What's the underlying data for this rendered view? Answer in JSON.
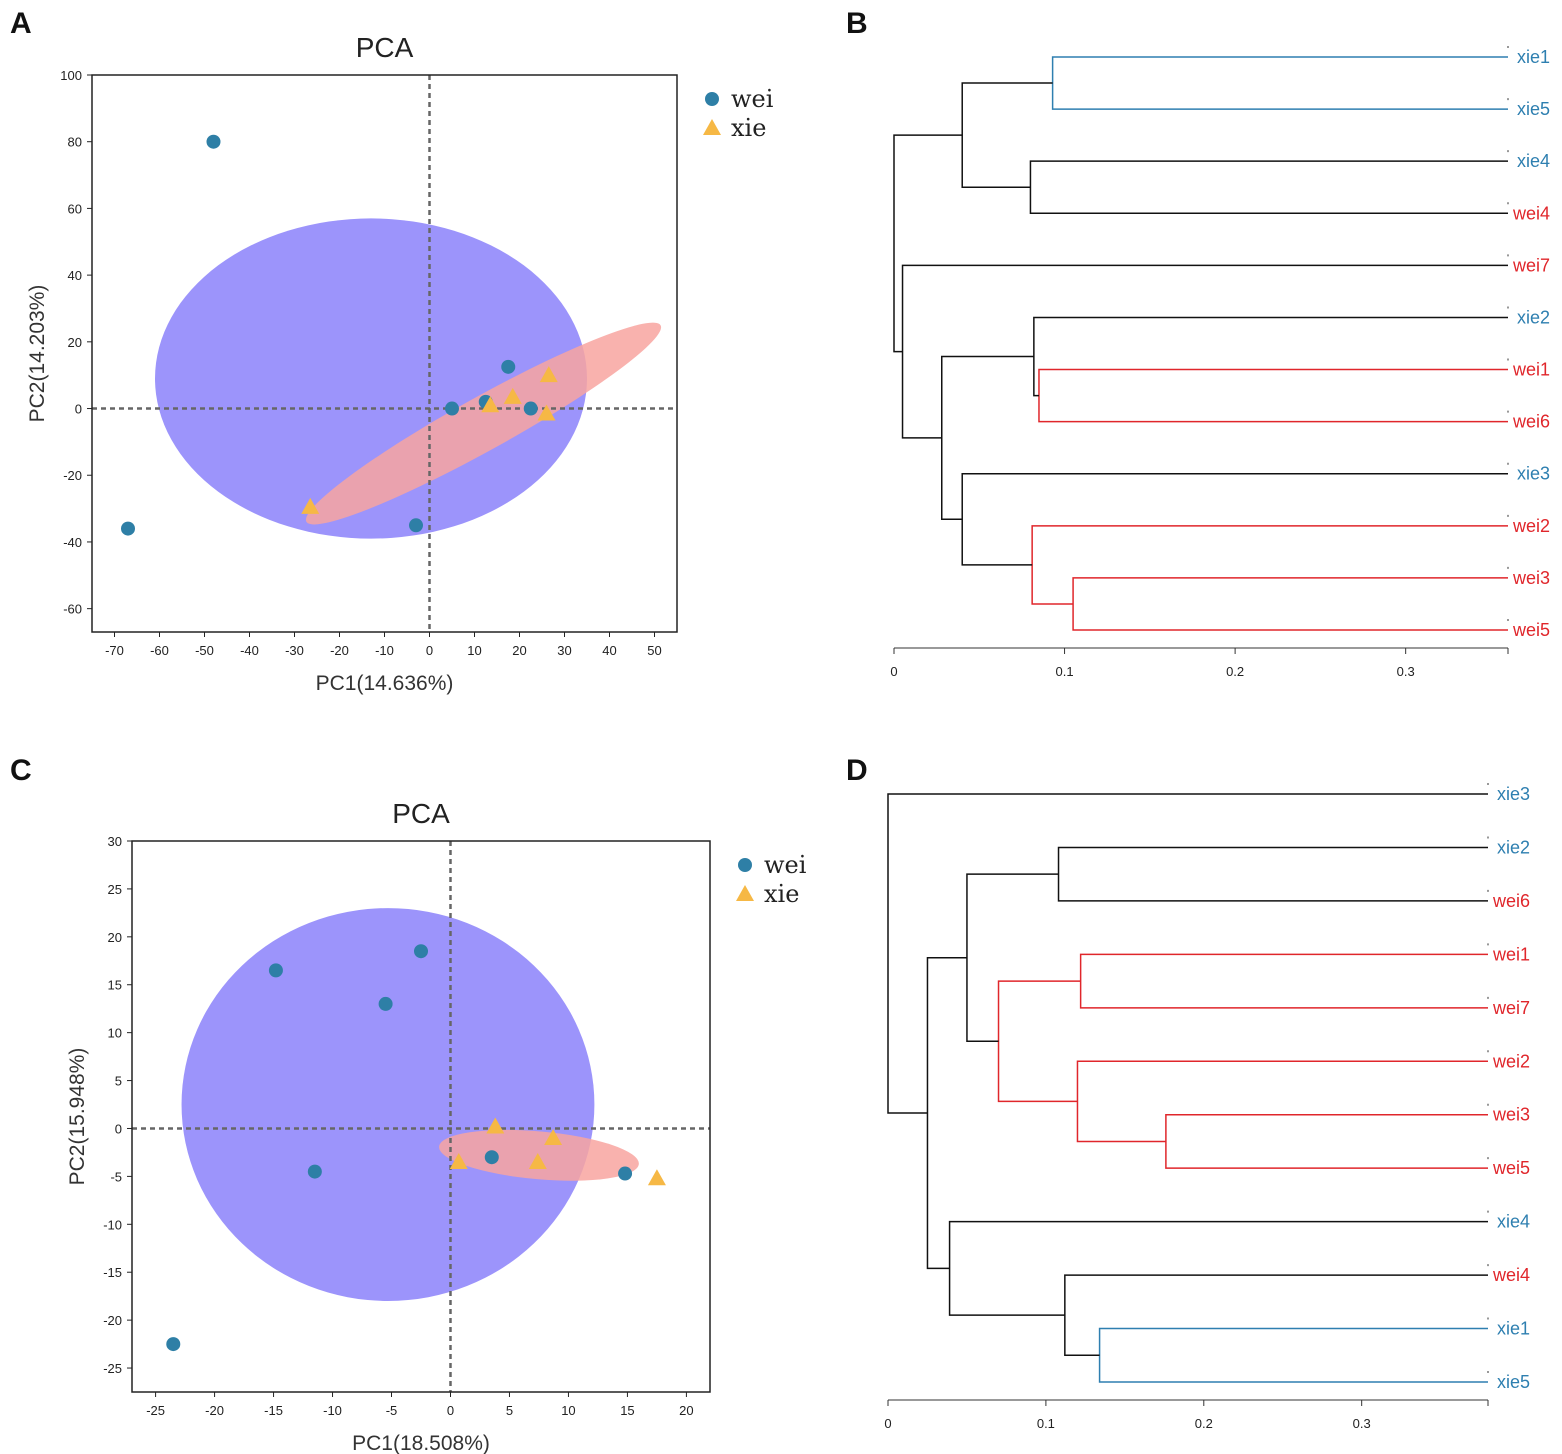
{
  "colors": {
    "wei_point": "#2e7fa6",
    "xie_point": "#f6b845",
    "wei_ellipse": "#9c94fb",
    "xie_ellipse": "#f8a5a0",
    "blue_branch": "#2e7fb0",
    "red_branch": "#e0262b",
    "black_branch": "#111111"
  },
  "chart_data": [
    {
      "panel": "A",
      "type": "scatter",
      "title": "PCA",
      "xlabel": "PC1(14.636%)",
      "ylabel": "PC2(14.203%)",
      "xlim": [
        -75,
        55
      ],
      "ylim": [
        -67,
        100
      ],
      "xticks": [
        -70,
        -60,
        -50,
        -40,
        -30,
        -20,
        -10,
        0,
        10,
        20,
        30,
        40,
        50
      ],
      "yticks": [
        100,
        80,
        60,
        40,
        20,
        0,
        -20,
        -40,
        -60
      ],
      "legend": [
        "wei",
        "xie"
      ],
      "series": [
        {
          "name": "wei",
          "marker": "circle",
          "points": [
            [
              -48,
              80
            ],
            [
              -67,
              -36
            ],
            [
              -3,
              -35
            ],
            [
              5,
              0
            ],
            [
              12.5,
              2
            ],
            [
              17.5,
              12.5
            ],
            [
              22.5,
              0
            ]
          ]
        },
        {
          "name": "xie",
          "marker": "triangle",
          "points": [
            [
              -26.5,
              -29.5
            ],
            [
              13.5,
              1
            ],
            [
              18.5,
              3.5
            ],
            [
              26,
              -1.5
            ],
            [
              26.5,
              10
            ]
          ]
        }
      ],
      "ellipses": [
        {
          "group": "wei",
          "cx": -13,
          "cy": 9,
          "rx": 48,
          "ry": 48
        },
        {
          "group": "xie",
          "cx": 12,
          "cy": -4.5,
          "rx": 45,
          "ry": 8,
          "angle_deg": 29
        }
      ]
    },
    {
      "panel": "B",
      "type": "dendrogram",
      "xticks": [
        0,
        0.1,
        0.2,
        0.3
      ],
      "xlim": [
        0,
        0.36
      ],
      "leaves": [
        {
          "label": "xie1",
          "group": "xie"
        },
        {
          "label": "xie5",
          "group": "xie"
        },
        {
          "label": "xie4",
          "group": "xie"
        },
        {
          "label": "wei4",
          "group": "wei"
        },
        {
          "label": "wei7",
          "group": "wei"
        },
        {
          "label": "xie2",
          "group": "xie"
        },
        {
          "label": "wei1",
          "group": "wei"
        },
        {
          "label": "wei6",
          "group": "wei"
        },
        {
          "label": "xie3",
          "group": "xie"
        },
        {
          "label": "wei2",
          "group": "wei"
        },
        {
          "label": "wei3",
          "group": "wei"
        },
        {
          "label": "wei5",
          "group": "wei"
        }
      ],
      "merges": [
        {
          "a": "L0",
          "b": "L1",
          "height": 0.093,
          "color": "blue"
        },
        {
          "a": "L2",
          "b": "L3",
          "height": 0.08,
          "color": "black"
        },
        {
          "a": "M0",
          "b": "M1",
          "height": 0.04,
          "color": "black"
        },
        {
          "a": "L6",
          "b": "L7",
          "height": 0.085,
          "color": "red"
        },
        {
          "a": "L5",
          "b": "M3",
          "height": 0.082,
          "color": "black"
        },
        {
          "a": "L10",
          "b": "L11",
          "height": 0.105,
          "color": "red"
        },
        {
          "a": "L9",
          "b": "M5",
          "height": 0.081,
          "color": "red"
        },
        {
          "a": "L8",
          "b": "M6",
          "height": 0.04,
          "color": "black"
        },
        {
          "a": "M4",
          "b": "M7",
          "height": 0.028,
          "color": "black"
        },
        {
          "a": "L4",
          "b": "M8",
          "height": 0.005,
          "color": "black"
        },
        {
          "a": "M2",
          "b": "M9",
          "height": 0,
          "color": "black"
        }
      ]
    },
    {
      "panel": "C",
      "type": "scatter",
      "title": "PCA",
      "xlabel": "PC1(18.508%)",
      "ylabel": "PC2(15.948%)",
      "xlim": [
        -27,
        22
      ],
      "ylim": [
        -27.5,
        30
      ],
      "xticks": [
        -25,
        -20,
        -15,
        -10,
        -5,
        0,
        5,
        10,
        15,
        20
      ],
      "yticks": [
        30,
        25,
        20,
        15,
        10,
        5,
        0,
        -5,
        -10,
        -15,
        -20,
        -25
      ],
      "legend": [
        "wei",
        "xie"
      ],
      "series": [
        {
          "name": "wei",
          "marker": "circle",
          "points": [
            [
              -14.8,
              16.5
            ],
            [
              -2.5,
              18.5
            ],
            [
              -5.5,
              13
            ],
            [
              -11.5,
              -4.5
            ],
            [
              3.5,
              -3
            ],
            [
              14.8,
              -4.7
            ],
            [
              -23.5,
              -22.5
            ]
          ]
        },
        {
          "name": "xie",
          "marker": "triangle",
          "points": [
            [
              0.7,
              -3.5
            ],
            [
              3.8,
              0.2
            ],
            [
              8.7,
              -1
            ],
            [
              7.4,
              -3.5
            ],
            [
              17.5,
              -5.2
            ]
          ]
        }
      ],
      "ellipses": [
        {
          "group": "wei",
          "cx": -5.3,
          "cy": 2.5,
          "rx": 17.5,
          "ry": 20.5,
          "angle_deg": 0
        },
        {
          "group": "xie",
          "cx": 7.5,
          "cy": -2.8,
          "rx": 8.5,
          "ry": 2.5,
          "angle_deg": -5
        }
      ]
    },
    {
      "panel": "D",
      "type": "dendrogram",
      "xticks": [
        0,
        0.1,
        0.2,
        0.3
      ],
      "xlim": [
        0,
        0.38
      ],
      "leaves": [
        {
          "label": "xie3",
          "group": "xie"
        },
        {
          "label": "xie2",
          "group": "xie"
        },
        {
          "label": "wei6",
          "group": "wei"
        },
        {
          "label": "wei1",
          "group": "wei"
        },
        {
          "label": "wei7",
          "group": "wei"
        },
        {
          "label": "wei2",
          "group": "wei"
        },
        {
          "label": "wei3",
          "group": "wei"
        },
        {
          "label": "wei5",
          "group": "wei"
        },
        {
          "label": "xie4",
          "group": "xie"
        },
        {
          "label": "wei4",
          "group": "wei"
        },
        {
          "label": "xie1",
          "group": "xie"
        },
        {
          "label": "xie5",
          "group": "xie"
        }
      ],
      "merges": [
        {
          "a": "L1",
          "b": "L2",
          "height": 0.108,
          "color": "black"
        },
        {
          "a": "L3",
          "b": "L4",
          "height": 0.122,
          "color": "red"
        },
        {
          "a": "L6",
          "b": "L7",
          "height": 0.176,
          "color": "red"
        },
        {
          "a": "L5",
          "b": "M2",
          "height": 0.12,
          "color": "red"
        },
        {
          "a": "M1",
          "b": "M3",
          "height": 0.07,
          "color": "red"
        },
        {
          "a": "M0",
          "b": "M4",
          "height": 0.05,
          "color": "black"
        },
        {
          "a": "L10",
          "b": "L11",
          "height": 0.134,
          "color": "blue"
        },
        {
          "a": "L9",
          "b": "M6",
          "height": 0.112,
          "color": "black"
        },
        {
          "a": "L8",
          "b": "M7",
          "height": 0.039,
          "color": "black"
        },
        {
          "a": "M5",
          "b": "M8",
          "height": 0.025,
          "color": "black"
        },
        {
          "a": "L0",
          "b": "M9",
          "height": 0,
          "color": "black"
        }
      ]
    }
  ]
}
